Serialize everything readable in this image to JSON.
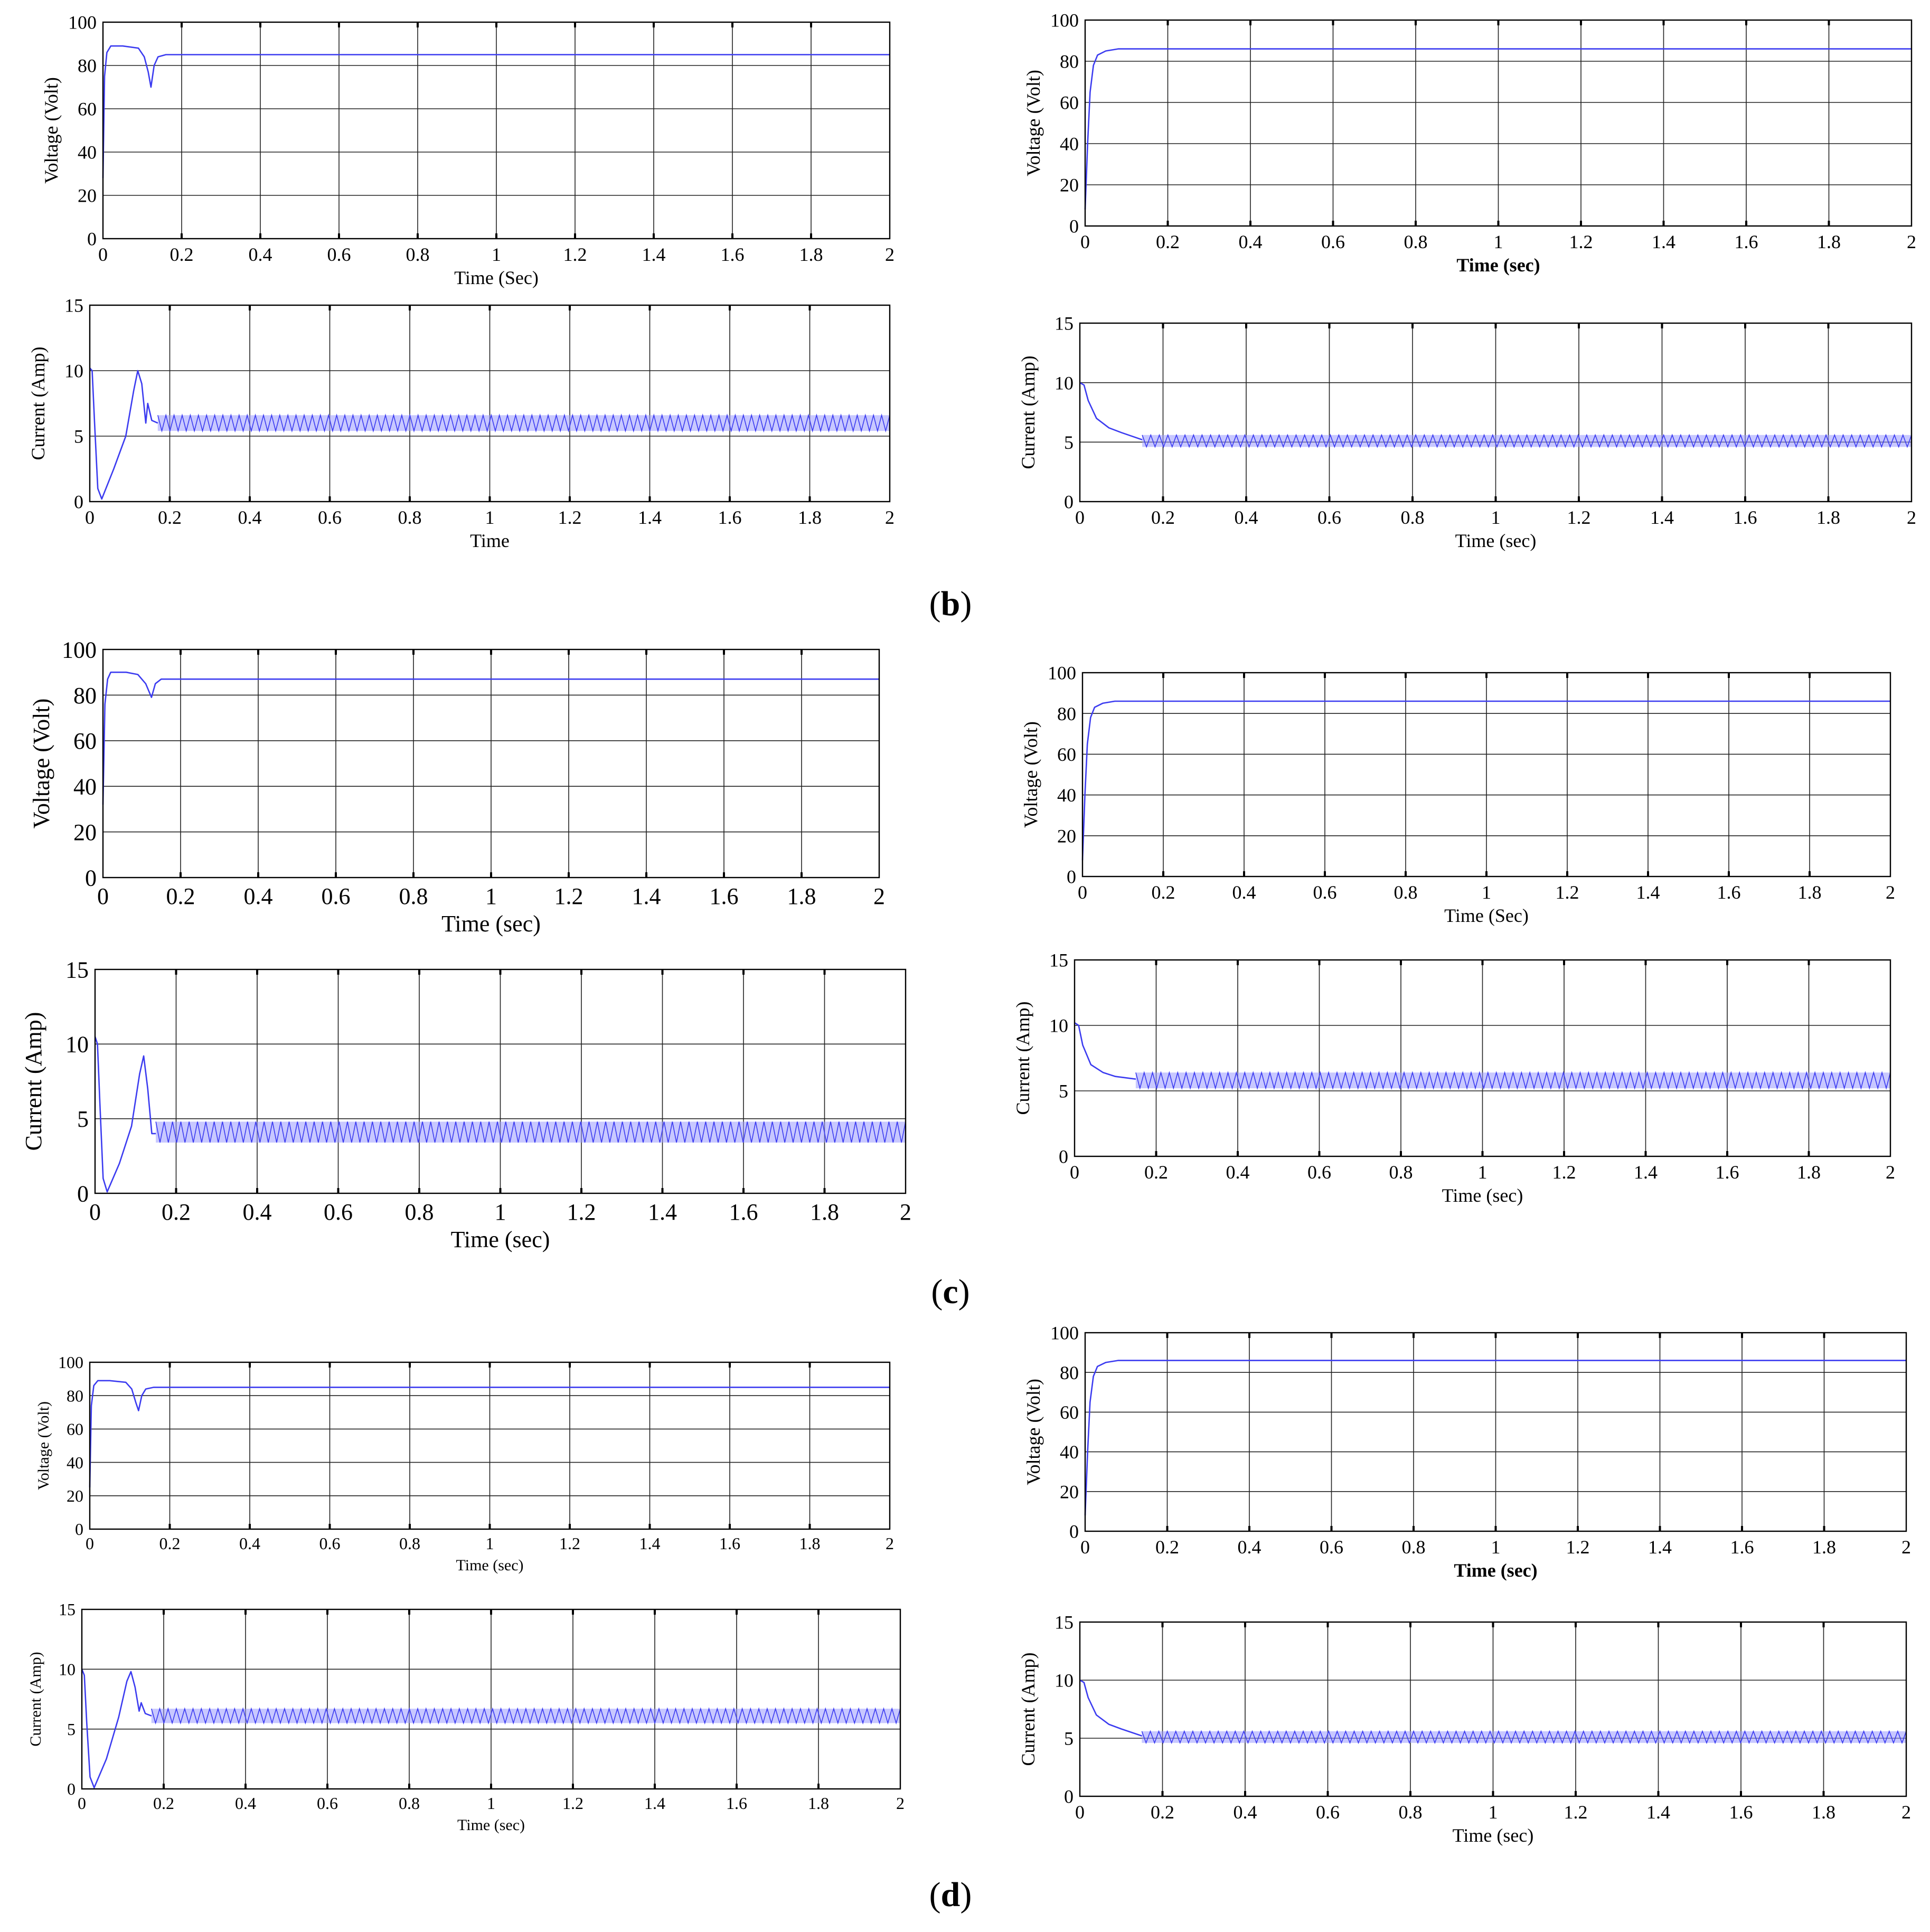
{
  "figure": {
    "panel_labels": [
      {
        "id": "b",
        "letter": "b"
      },
      {
        "id": "c",
        "letter": "c"
      },
      {
        "id": "d",
        "letter": "d"
      }
    ]
  },
  "colors": {
    "trace": "#3b3bf0",
    "trace_fill": "#9a9aff",
    "grid": "#222222",
    "axis": "#000000"
  },
  "chart_data": [
    {
      "id": "b-left-voltage",
      "type": "line",
      "trace": "voltage_dip",
      "xlabel": "Time (Sec)",
      "ylabel": "Voltage (Volt)",
      "xlim": [
        0,
        2
      ],
      "ylim": [
        0,
        100
      ],
      "xticks": [
        "0",
        "0.2",
        "0.4",
        "0.6",
        "0.8",
        "1",
        "1.2",
        "1.4",
        "1.6",
        "1.8",
        "2"
      ],
      "yticks": [
        "0",
        "20",
        "40",
        "60",
        "80",
        "100"
      ],
      "series": [
        {
          "name": "Voltage",
          "points": [
            [
              0,
              28
            ],
            [
              0.004,
              75
            ],
            [
              0.01,
              86
            ],
            [
              0.02,
              89
            ],
            [
              0.05,
              89
            ],
            [
              0.09,
              88
            ],
            [
              0.105,
              84
            ],
            [
              0.115,
              77
            ],
            [
              0.122,
              70
            ],
            [
              0.13,
              80
            ],
            [
              0.14,
              84
            ],
            [
              0.16,
              85
            ],
            [
              2,
              85
            ]
          ]
        }
      ]
    },
    {
      "id": "b-left-current",
      "type": "area",
      "trace": "current_dip",
      "xlabel": "Time",
      "ylabel": "Current (Amp)",
      "xlim": [
        0,
        2
      ],
      "ylim": [
        0,
        15
      ],
      "xticks": [
        "0",
        "0.2",
        "0.4",
        "0.6",
        "0.8",
        "1",
        "1.2",
        "1.4",
        "1.6",
        "1.8",
        "2"
      ],
      "yticks": [
        "0",
        "5",
        "10",
        "15"
      ],
      "band": [
        5.4,
        6.6
      ],
      "band_start": 0.17,
      "series": [
        {
          "name": "Current",
          "points": [
            [
              0,
              10.2
            ],
            [
              0.006,
              10
            ],
            [
              0.012,
              6
            ],
            [
              0.02,
              1
            ],
            [
              0.03,
              0.2
            ],
            [
              0.06,
              2.5
            ],
            [
              0.09,
              5
            ],
            [
              0.11,
              8.5
            ],
            [
              0.12,
              10
            ],
            [
              0.13,
              9
            ],
            [
              0.14,
              6
            ],
            [
              0.145,
              7.5
            ],
            [
              0.155,
              6.2
            ],
            [
              0.17,
              6
            ]
          ]
        }
      ]
    },
    {
      "id": "b-right-voltage",
      "type": "line",
      "trace": "voltage_smooth",
      "xlabel": "Time (sec)",
      "ylabel": "Voltage (Volt)",
      "xlim": [
        0,
        2
      ],
      "ylim": [
        0,
        100
      ],
      "xticks": [
        "0",
        "0.2",
        "0.4",
        "0.6",
        "0.8",
        "1",
        "1.2",
        "1.4",
        "1.6",
        "1.8",
        "2"
      ],
      "yticks": [
        "0",
        "20",
        "40",
        "60",
        "80",
        "100"
      ],
      "series": [
        {
          "name": "Voltage",
          "points": [
            [
              0,
              8
            ],
            [
              0.006,
              40
            ],
            [
              0.012,
              65
            ],
            [
              0.02,
              78
            ],
            [
              0.03,
              83
            ],
            [
              0.05,
              85
            ],
            [
              0.08,
              86
            ],
            [
              2,
              86
            ]
          ]
        }
      ]
    },
    {
      "id": "b-right-current",
      "type": "area",
      "trace": "current_smooth",
      "xlabel": "Time (sec)",
      "ylabel": "Current (Amp)",
      "xlim": [
        0,
        2
      ],
      "ylim": [
        0,
        15
      ],
      "xticks": [
        "0",
        "0.2",
        "0.4",
        "0.6",
        "0.8",
        "1",
        "1.2",
        "1.4",
        "1.6",
        "1.8",
        "2"
      ],
      "yticks": [
        "0",
        "5",
        "10",
        "15"
      ],
      "band": [
        4.6,
        5.6
      ],
      "band_start": 0.15,
      "series": [
        {
          "name": "Current",
          "points": [
            [
              0,
              10
            ],
            [
              0.01,
              9.8
            ],
            [
              0.02,
              8.5
            ],
            [
              0.04,
              7
            ],
            [
              0.07,
              6.2
            ],
            [
              0.1,
              5.8
            ],
            [
              0.15,
              5.2
            ]
          ]
        }
      ]
    },
    {
      "id": "c-left-voltage",
      "type": "line",
      "trace": "voltage_dip",
      "xlabel": "Time (sec)",
      "ylabel": "Voltage (Volt)",
      "xlim": [
        0,
        2
      ],
      "ylim": [
        0,
        100
      ],
      "xticks": [
        "0",
        "0.2",
        "0.4",
        "0.6",
        "0.8",
        "1",
        "1.2",
        "1.4",
        "1.6",
        "1.8",
        "2"
      ],
      "yticks": [
        "0",
        "20",
        "40",
        "60",
        "80",
        "100"
      ],
      "series": [
        {
          "name": "Voltage",
          "points": [
            [
              0,
              32
            ],
            [
              0.005,
              76
            ],
            [
              0.012,
              87
            ],
            [
              0.02,
              90
            ],
            [
              0.06,
              90
            ],
            [
              0.09,
              89
            ],
            [
              0.11,
              85
            ],
            [
              0.125,
              79
            ],
            [
              0.135,
              85
            ],
            [
              0.15,
              87
            ],
            [
              2,
              87
            ]
          ]
        }
      ]
    },
    {
      "id": "c-left-current",
      "type": "area",
      "trace": "current_dip",
      "xlabel": "Time (sec)",
      "ylabel": "Current (Amp)",
      "xlim": [
        0,
        2
      ],
      "ylim": [
        0,
        15
      ],
      "xticks": [
        "0",
        "0.2",
        "0.4",
        "0.6",
        "0.8",
        "1",
        "1.2",
        "1.4",
        "1.6",
        "1.8",
        "2"
      ],
      "yticks": [
        "0",
        "5",
        "10",
        "15"
      ],
      "band": [
        3.4,
        4.8
      ],
      "band_start": 0.15,
      "series": [
        {
          "name": "Current",
          "points": [
            [
              0,
              10.5
            ],
            [
              0.006,
              10
            ],
            [
              0.012,
              6
            ],
            [
              0.02,
              1
            ],
            [
              0.03,
              0.1
            ],
            [
              0.06,
              2
            ],
            [
              0.09,
              4.5
            ],
            [
              0.11,
              8
            ],
            [
              0.12,
              9.2
            ],
            [
              0.13,
              7
            ],
            [
              0.14,
              4
            ],
            [
              0.15,
              4
            ]
          ]
        }
      ]
    },
    {
      "id": "c-right-voltage",
      "type": "line",
      "trace": "voltage_smooth",
      "xlabel": "Time (Sec)",
      "ylabel": "Voltage (Volt)",
      "xlim": [
        0,
        2
      ],
      "ylim": [
        0,
        100
      ],
      "xticks": [
        "0",
        "0.2",
        "0.4",
        "0.6",
        "0.8",
        "1",
        "1.2",
        "1.4",
        "1.6",
        "1.8",
        "2"
      ],
      "yticks": [
        "0",
        "20",
        "40",
        "60",
        "80",
        "100"
      ],
      "series": [
        {
          "name": "Voltage",
          "points": [
            [
              0,
              8
            ],
            [
              0.006,
              40
            ],
            [
              0.012,
              65
            ],
            [
              0.02,
              78
            ],
            [
              0.03,
              83
            ],
            [
              0.05,
              85
            ],
            [
              0.08,
              86
            ],
            [
              2,
              86
            ]
          ]
        }
      ]
    },
    {
      "id": "c-right-current",
      "type": "area",
      "trace": "current_smooth",
      "xlabel": "Time (sec)",
      "ylabel": "Current (Amp)",
      "xlim": [
        0,
        2
      ],
      "ylim": [
        0,
        15
      ],
      "xticks": [
        "0",
        "0.2",
        "0.4",
        "0.6",
        "0.8",
        "1",
        "1.2",
        "1.4",
        "1.6",
        "1.8",
        "2"
      ],
      "yticks": [
        "0",
        "5",
        "10",
        "15"
      ],
      "band": [
        5.2,
        6.4
      ],
      "band_start": 0.15,
      "series": [
        {
          "name": "Current",
          "points": [
            [
              0,
              10.2
            ],
            [
              0.01,
              10
            ],
            [
              0.02,
              8.5
            ],
            [
              0.04,
              7
            ],
            [
              0.07,
              6.4
            ],
            [
              0.1,
              6.1
            ],
            [
              0.15,
              5.9
            ]
          ]
        }
      ]
    },
    {
      "id": "d-left-voltage",
      "type": "line",
      "trace": "voltage_dip",
      "xlabel": "Time (sec)",
      "ylabel": "Voltage (Volt)",
      "xlim": [
        0,
        2
      ],
      "ylim": [
        0,
        100
      ],
      "xticks": [
        "0",
        "0.2",
        "0.4",
        "0.6",
        "0.8",
        "1",
        "1.2",
        "1.4",
        "1.6",
        "1.8",
        "2"
      ],
      "yticks": [
        "0",
        "20",
        "40",
        "60",
        "80",
        "100"
      ],
      "series": [
        {
          "name": "Voltage",
          "points": [
            [
              0,
              25
            ],
            [
              0.004,
              74
            ],
            [
              0.01,
              86
            ],
            [
              0.02,
              89
            ],
            [
              0.05,
              89
            ],
            [
              0.09,
              88
            ],
            [
              0.105,
              84
            ],
            [
              0.115,
              76
            ],
            [
              0.122,
              71
            ],
            [
              0.13,
              80
            ],
            [
              0.14,
              84
            ],
            [
              0.16,
              85
            ],
            [
              2,
              85
            ]
          ]
        }
      ]
    },
    {
      "id": "d-left-current",
      "type": "area",
      "trace": "current_dip",
      "xlabel": "Time (sec)",
      "ylabel": "Current (Amp)",
      "xlim": [
        0,
        2
      ],
      "ylim": [
        0,
        15
      ],
      "xticks": [
        "0",
        "0.2",
        "0.4",
        "0.6",
        "0.8",
        "1",
        "1.2",
        "1.4",
        "1.6",
        "1.8",
        "2"
      ],
      "yticks": [
        "0",
        "5",
        "10",
        "15"
      ],
      "band": [
        5.5,
        6.7
      ],
      "band_start": 0.17,
      "series": [
        {
          "name": "Current",
          "points": [
            [
              0,
              10
            ],
            [
              0.006,
              9.5
            ],
            [
              0.012,
              5.5
            ],
            [
              0.02,
              1
            ],
            [
              0.03,
              0.1
            ],
            [
              0.06,
              2.5
            ],
            [
              0.09,
              6
            ],
            [
              0.11,
              9
            ],
            [
              0.12,
              9.8
            ],
            [
              0.13,
              8.5
            ],
            [
              0.14,
              6.5
            ],
            [
              0.145,
              7.2
            ],
            [
              0.155,
              6.3
            ],
            [
              0.17,
              6.1
            ]
          ]
        }
      ]
    },
    {
      "id": "d-right-voltage",
      "type": "line",
      "trace": "voltage_smooth",
      "xlabel": "Time (sec)",
      "ylabel": "Voltage (Volt)",
      "xlim": [
        0,
        2
      ],
      "ylim": [
        0,
        100
      ],
      "xticks": [
        "0",
        "0.2",
        "0.4",
        "0.6",
        "0.8",
        "1",
        "1.2",
        "1.4",
        "1.6",
        "1.8",
        "2"
      ],
      "yticks": [
        "0",
        "20",
        "40",
        "60",
        "80",
        "100"
      ],
      "series": [
        {
          "name": "Voltage",
          "points": [
            [
              0,
              8
            ],
            [
              0.006,
              40
            ],
            [
              0.012,
              65
            ],
            [
              0.02,
              78
            ],
            [
              0.03,
              83
            ],
            [
              0.05,
              85
            ],
            [
              0.08,
              86
            ],
            [
              2,
              86
            ]
          ]
        }
      ]
    },
    {
      "id": "d-right-current",
      "type": "area",
      "trace": "current_smooth",
      "xlabel": "Time (sec)",
      "ylabel": "Current (Amp)",
      "xlim": [
        0,
        2
      ],
      "ylim": [
        0,
        15
      ],
      "xticks": [
        "0",
        "0.2",
        "0.4",
        "0.6",
        "0.8",
        "1",
        "1.2",
        "1.4",
        "1.6",
        "1.8",
        "2"
      ],
      "yticks": [
        "0",
        "5",
        "10",
        "15"
      ],
      "band": [
        4.6,
        5.6
      ],
      "band_start": 0.15,
      "series": [
        {
          "name": "Current",
          "points": [
            [
              0,
              10
            ],
            [
              0.01,
              9.8
            ],
            [
              0.02,
              8.5
            ],
            [
              0.04,
              7
            ],
            [
              0.07,
              6.2
            ],
            [
              0.1,
              5.8
            ],
            [
              0.15,
              5.2
            ]
          ]
        }
      ]
    }
  ]
}
